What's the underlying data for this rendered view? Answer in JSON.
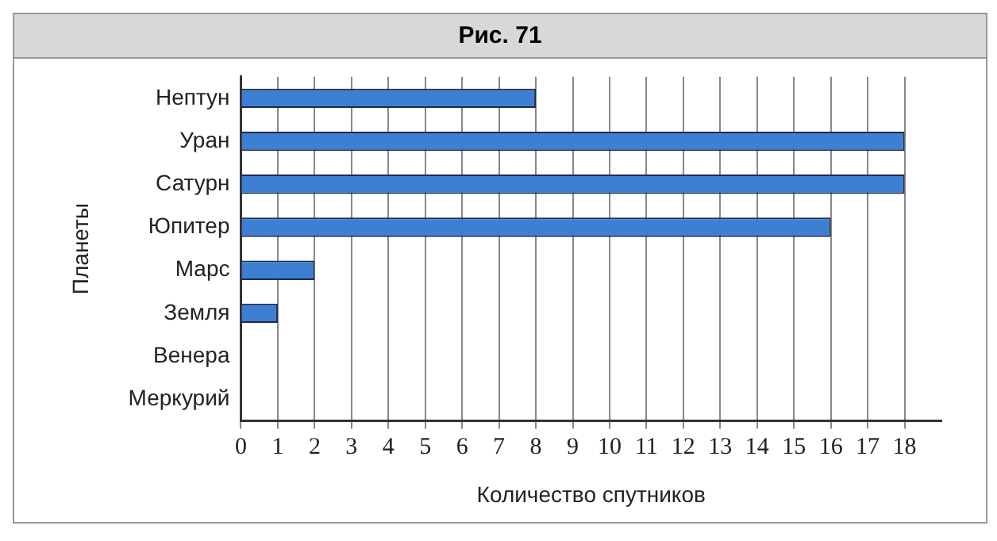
{
  "chart_data": {
    "type": "bar",
    "orientation": "horizontal",
    "title": "Рис. 71",
    "xlabel": "Количество спутников",
    "ylabel": "Планеты",
    "categories": [
      "Нептун",
      "Уран",
      "Сатурн",
      "Юпитер",
      "Марс",
      "Земля",
      "Венера",
      "Меркурий"
    ],
    "values": [
      8,
      18,
      18,
      16,
      2,
      1,
      0,
      0
    ],
    "color": "#3d7fd3",
    "xlim": [
      0,
      19
    ],
    "xticks": [
      0,
      1,
      2,
      3,
      4,
      5,
      6,
      7,
      8,
      9,
      10,
      11,
      12,
      13,
      14,
      15,
      16,
      17,
      18
    ],
    "grid": "x",
    "legend": false
  }
}
